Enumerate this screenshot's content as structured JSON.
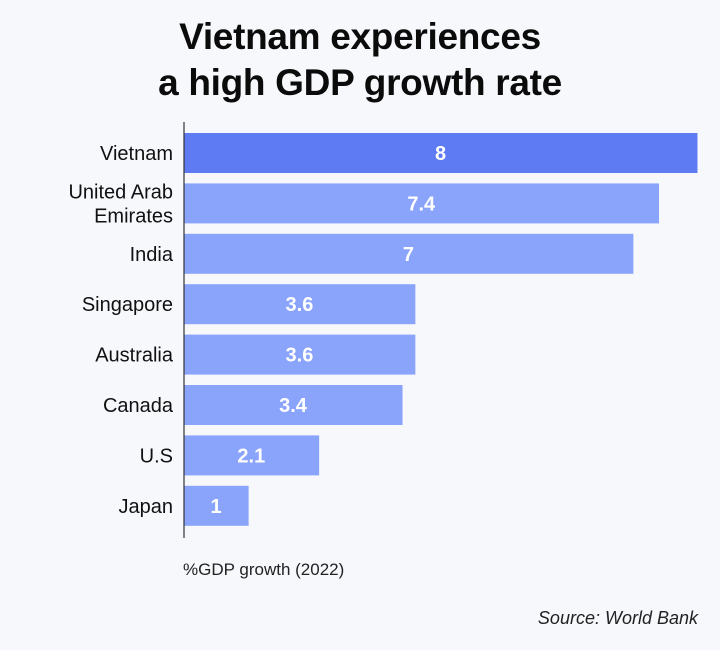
{
  "title": {
    "line1": "Vietnam experiences",
    "line2": "a high GDP growth rate"
  },
  "xlabel": "%GDP growth (2022)",
  "source": "Source: World Bank",
  "colors": {
    "highlight": "#5f7bf4",
    "bar": "#8aa3fb",
    "label_text": "#ffffff",
    "axis": "#333333"
  },
  "chart_data": {
    "type": "bar",
    "orientation": "horizontal",
    "title": "Vietnam experiences a high GDP growth rate",
    "xlabel": "%GDP growth (2022)",
    "ylabel": "",
    "categories": [
      [
        "Vietnam"
      ],
      [
        "United Arab",
        "Emirates"
      ],
      [
        "India"
      ],
      [
        "Singapore"
      ],
      [
        "Australia"
      ],
      [
        "Canada"
      ],
      [
        "U.S"
      ],
      [
        "Japan"
      ]
    ],
    "values": [
      8,
      7.4,
      7,
      3.6,
      3.6,
      3.4,
      2.1,
      1
    ],
    "value_labels": [
      "8",
      "7.4",
      "7",
      "3.6",
      "3.6",
      "3.4",
      "2.1",
      "1"
    ],
    "highlight_index": 0,
    "xlim": [
      0,
      8
    ],
    "grid": false,
    "legend": "none"
  }
}
